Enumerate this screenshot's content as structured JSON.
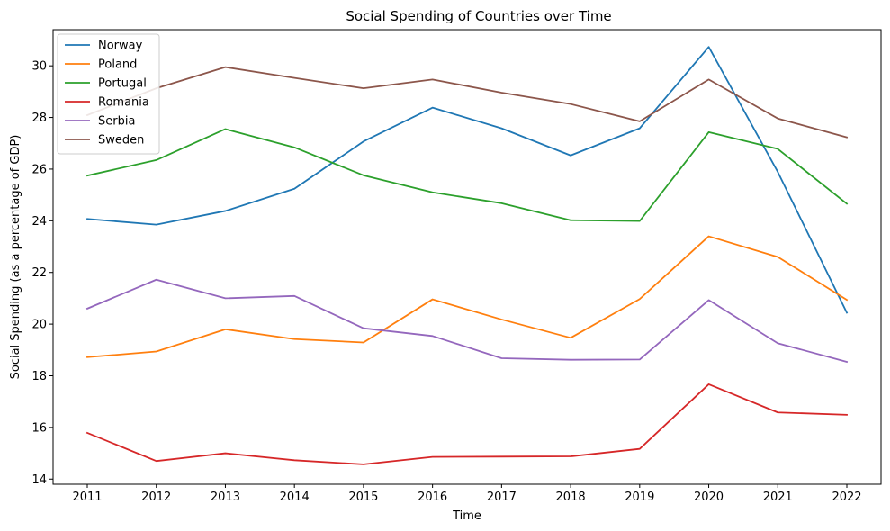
{
  "chart_data": {
    "type": "line",
    "title": "Social Spending of Countries over Time",
    "xlabel": "Time",
    "ylabel": "Social Spending (as a percentage of GDP)",
    "x": [
      "2011",
      "2012",
      "2013",
      "2014",
      "2015",
      "2016",
      "2017",
      "2018",
      "2019",
      "2020",
      "2021",
      "2022"
    ],
    "ylim": [
      13.8,
      31.4
    ],
    "yticks": [
      14,
      16,
      18,
      20,
      22,
      24,
      26,
      28,
      30
    ],
    "grid": false,
    "legend_position": "top-left",
    "series": [
      {
        "name": "Norway",
        "color": "#1f77b4",
        "values": [
          24.07,
          23.85,
          24.38,
          25.24,
          27.07,
          28.38,
          27.58,
          26.53,
          27.58,
          30.73,
          25.89,
          20.44
        ]
      },
      {
        "name": "Poland",
        "color": "#ff7f0e",
        "values": [
          18.72,
          18.94,
          19.8,
          19.42,
          19.29,
          20.96,
          20.18,
          19.47,
          20.97,
          23.4,
          22.6,
          20.94
        ]
      },
      {
        "name": "Portugal",
        "color": "#2ca02c",
        "values": [
          25.75,
          26.35,
          27.55,
          26.84,
          25.76,
          25.1,
          24.68,
          24.02,
          23.99,
          27.43,
          26.78,
          24.66
        ]
      },
      {
        "name": "Romania",
        "color": "#d62728",
        "values": [
          15.79,
          14.7,
          15.0,
          14.73,
          14.57,
          14.86,
          14.87,
          14.88,
          15.17,
          17.67,
          16.58,
          16.49
        ]
      },
      {
        "name": "Serbia",
        "color": "#9467bd",
        "values": [
          20.6,
          21.72,
          21.0,
          21.09,
          19.84,
          19.54,
          18.68,
          18.62,
          18.63,
          20.93,
          19.26,
          18.54
        ]
      },
      {
        "name": "Sweden",
        "color": "#8c564b",
        "values": [
          28.09,
          29.13,
          29.95,
          29.53,
          29.13,
          29.47,
          28.96,
          28.52,
          27.85,
          29.47,
          27.96,
          27.23
        ]
      }
    ]
  }
}
